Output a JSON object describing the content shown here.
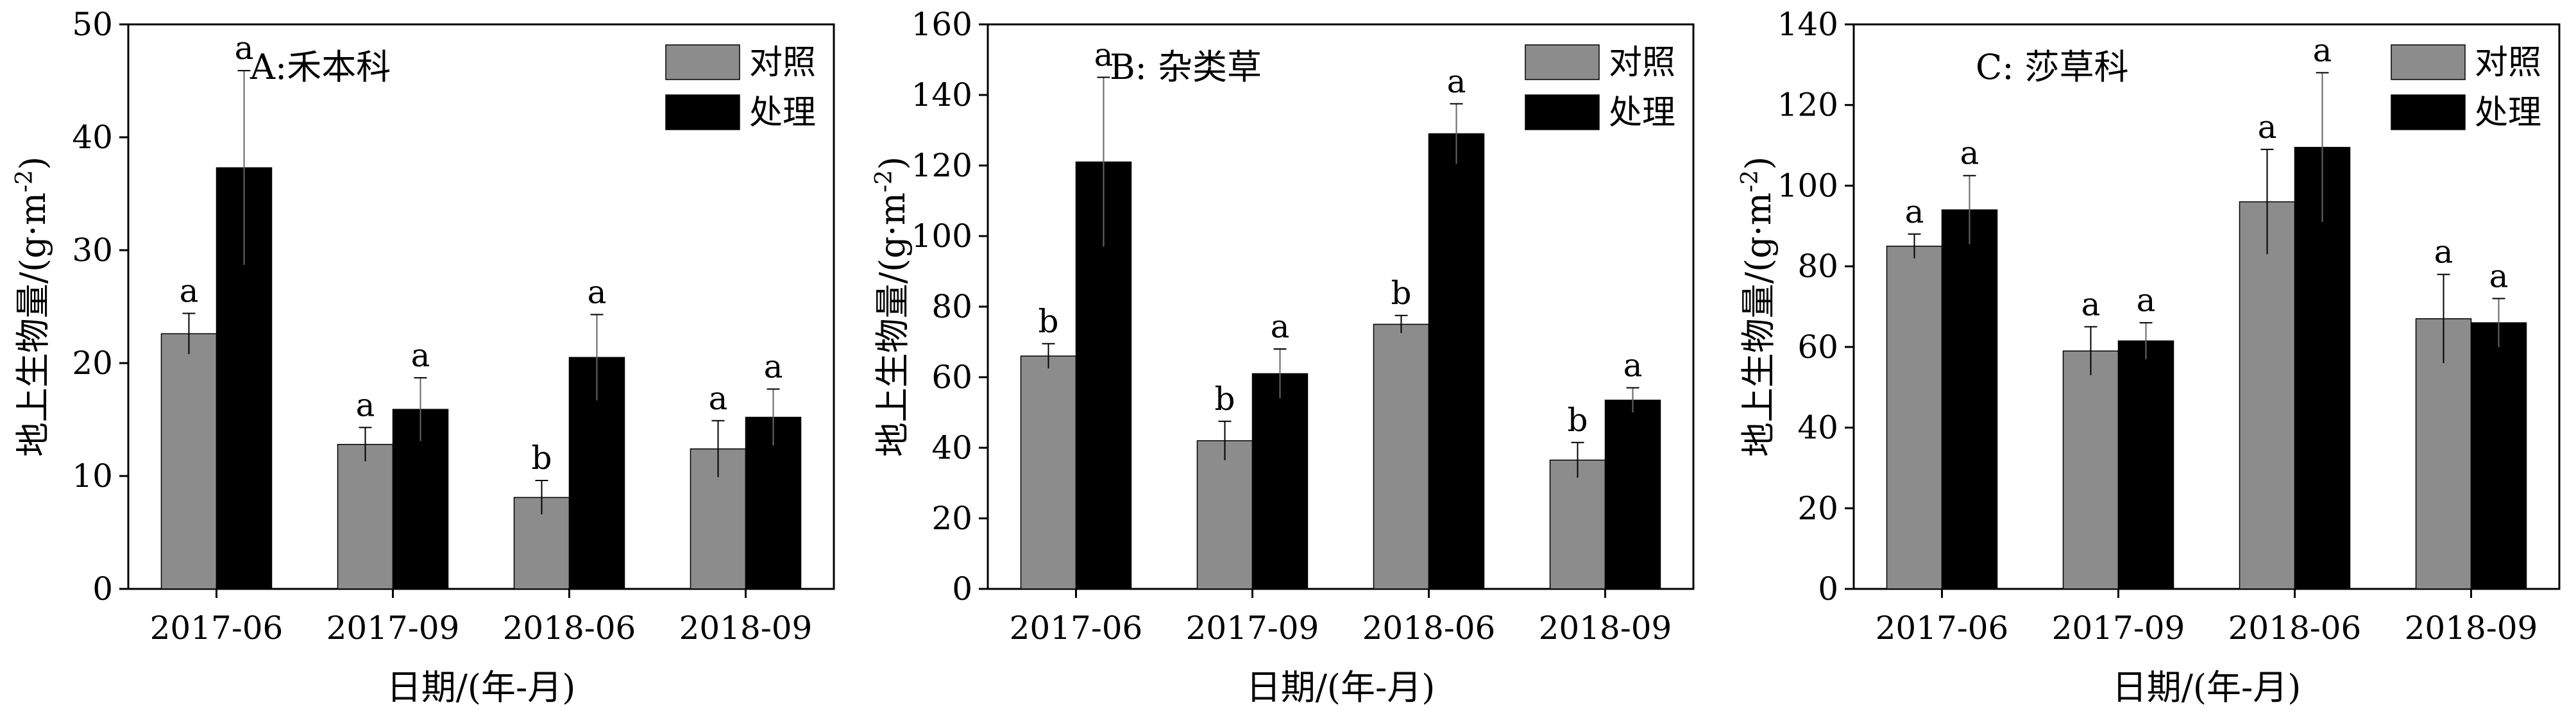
{
  "colors": {
    "control": "#8c8c8c",
    "treatment": "#000000"
  },
  "chart_data": [
    {
      "type": "bar",
      "panel_label": "A:禾本科",
      "categories": [
        "2017-06",
        "2017-09",
        "2018-06",
        "2018-09"
      ],
      "xlabel": "日期/(年-月)",
      "ylabel_main": "地上生物量/(g·m",
      "ylabel_sup": "-2",
      "ylabel_close": ")",
      "ylim": [
        0,
        50
      ],
      "yticks": [
        0,
        10,
        20,
        30,
        40,
        50
      ],
      "legend": "top-right",
      "series": [
        {
          "name": "对照",
          "values": [
            22.6,
            12.8,
            8.1,
            12.4
          ],
          "errors": [
            1.8,
            1.5,
            1.5,
            2.5
          ],
          "letters": [
            "a",
            "a",
            "b",
            "a"
          ]
        },
        {
          "name": "处理",
          "values": [
            37.3,
            15.9,
            20.5,
            15.2
          ],
          "errors": [
            8.6,
            2.8,
            3.8,
            2.5
          ],
          "letters": [
            "a",
            "a",
            "a",
            "a"
          ]
        }
      ]
    },
    {
      "type": "bar",
      "panel_label": "B: 杂类草",
      "categories": [
        "2017-06",
        "2017-09",
        "2018-06",
        "2018-09"
      ],
      "xlabel": "日期/(年-月)",
      "ylabel_main": "地上生物量/(g·m",
      "ylabel_sup": "-2",
      "ylabel_close": ")",
      "ylim": [
        0,
        160
      ],
      "yticks": [
        0,
        20,
        40,
        60,
        80,
        100,
        120,
        140,
        160
      ],
      "legend": "top-right",
      "series": [
        {
          "name": "对照",
          "values": [
            66,
            42,
            75,
            36.5
          ],
          "errors": [
            3.5,
            5.5,
            2.5,
            5
          ],
          "letters": [
            "b",
            "b",
            "b",
            "b"
          ]
        },
        {
          "name": "处理",
          "values": [
            121,
            61,
            129,
            53.5
          ],
          "errors": [
            24,
            7,
            8.5,
            3.5
          ],
          "letters": [
            "a",
            "a",
            "a",
            "a"
          ]
        }
      ]
    },
    {
      "type": "bar",
      "panel_label": "C: 莎草科",
      "categories": [
        "2017-06",
        "2017-09",
        "2018-06",
        "2018-09"
      ],
      "xlabel": "日期/(年-月)",
      "ylabel_main": "地上生物量/(g·m",
      "ylabel_sup": "-2",
      "ylabel_close": ")",
      "ylim": [
        0,
        140
      ],
      "yticks": [
        0,
        20,
        40,
        60,
        80,
        100,
        120,
        140
      ],
      "legend": "top-right",
      "series": [
        {
          "name": "对照",
          "values": [
            85,
            59,
            96,
            67
          ],
          "errors": [
            3,
            6,
            13,
            11
          ],
          "letters": [
            "a",
            "a",
            "a",
            "a"
          ]
        },
        {
          "name": "处理",
          "values": [
            94,
            61.5,
            109.5,
            66
          ],
          "errors": [
            8.5,
            4.5,
            18.5,
            6
          ],
          "letters": [
            "a",
            "a",
            "a",
            "a"
          ]
        }
      ]
    }
  ]
}
